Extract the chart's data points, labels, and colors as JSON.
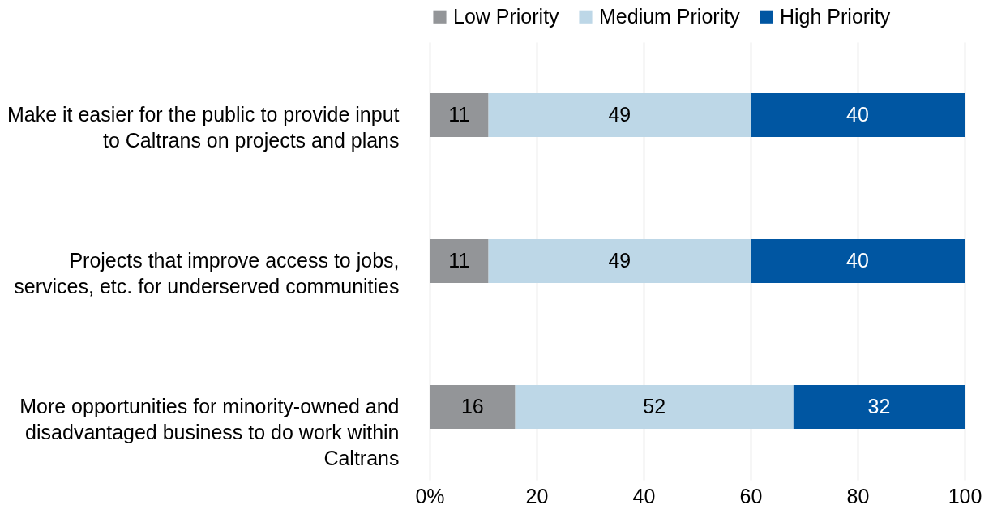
{
  "chart_data": {
    "type": "bar",
    "orientation": "horizontal",
    "stacked": true,
    "categories": [
      "Make it easier for the public to provide input to Caltrans on projects and plans",
      "Projects that improve access to jobs, services, etc. for underserved communities",
      "More opportunities for minority-owned and disadvantaged business to do work within Caltrans"
    ],
    "series": [
      {
        "name": "Low Priority",
        "color": "#939598",
        "values": [
          11,
          11,
          16
        ]
      },
      {
        "name": "Medium Priority",
        "color": "#bdd7e7",
        "values": [
          49,
          49,
          52
        ]
      },
      {
        "name": "High Priority",
        "color": "#0056a2",
        "values": [
          40,
          40,
          32
        ]
      }
    ],
    "xlim": [
      0,
      100
    ],
    "xticks": [
      {
        "value": 0,
        "label": "0%"
      },
      20,
      40,
      60,
      80,
      100
    ],
    "grid": "x",
    "legend": "top",
    "data_labels": true
  }
}
